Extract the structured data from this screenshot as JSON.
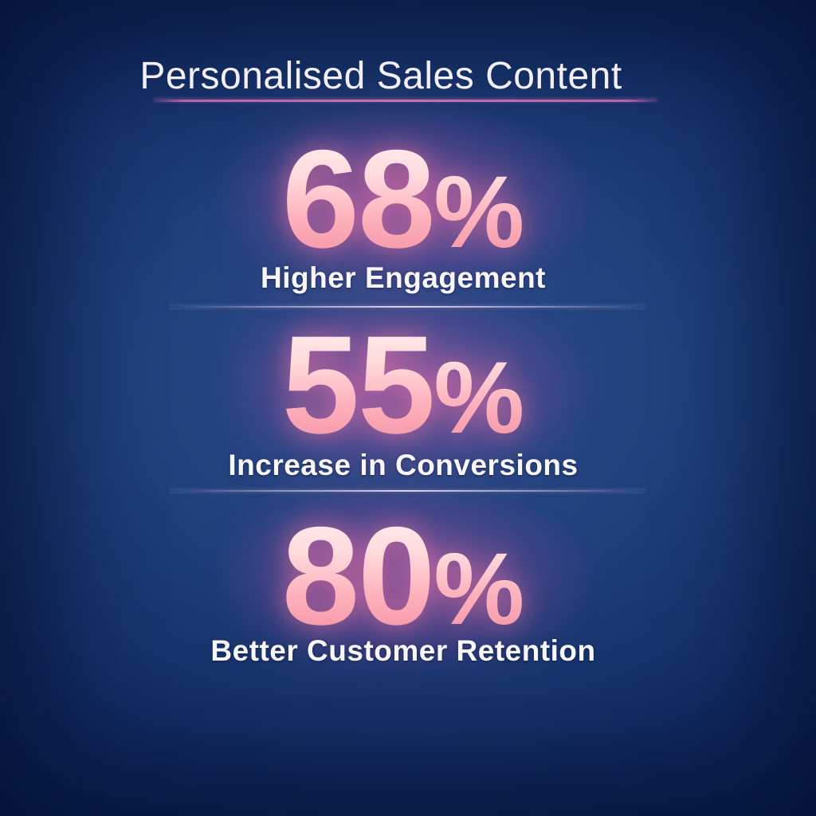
{
  "title": "Personalised Sales Content",
  "stats": [
    {
      "value": "68",
      "unit": "%",
      "label": "Higher Engagement"
    },
    {
      "value": "55",
      "unit": "%",
      "label": "Increase in Conversions"
    },
    {
      "value": "80",
      "unit": "%",
      "label": "Better Customer Retention"
    }
  ],
  "colors": {
    "background_dark": "#051b4b",
    "background_light": "#2d4c89",
    "stat_pink_top": "#fff1f1",
    "stat_pink_bottom": "#f48da1",
    "glow_magenta": "#e962b2",
    "underline_magenta": "#c96fb2",
    "text_white": "#f8f6fb"
  },
  "chart_data": {
    "type": "table",
    "title": "Personalised Sales Content",
    "categories": [
      "Higher Engagement",
      "Increase in Conversions",
      "Better Customer Retention"
    ],
    "values": [
      68,
      55,
      80
    ],
    "unit": "%",
    "notes": "Infographic of three glowing pink percentage statistics on a dark navy radial-gradient background, separated by thin light dividers"
  }
}
